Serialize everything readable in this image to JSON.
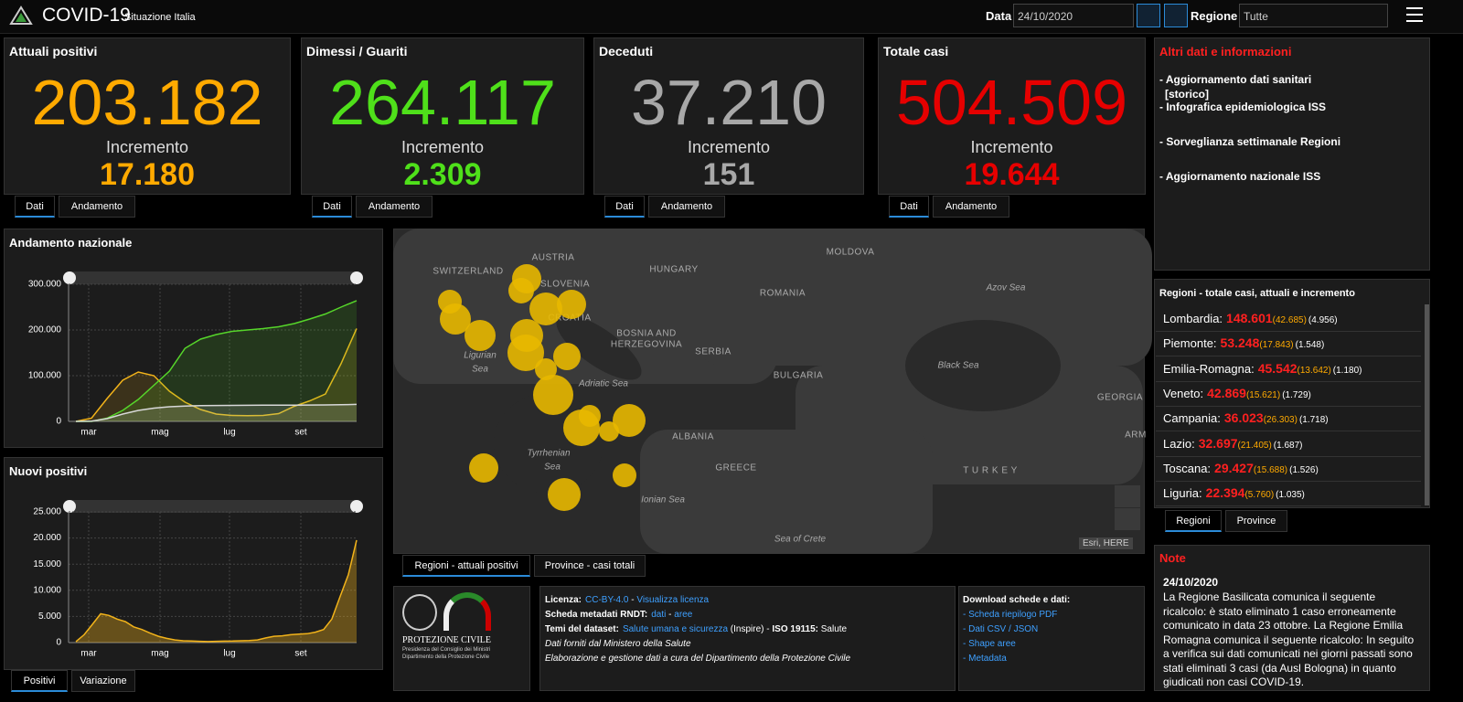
{
  "header": {
    "title": "COVID-19",
    "subtitle": "Situazione Italia",
    "date_label": "Data",
    "date": "24/10/2020",
    "region_label": "Regione",
    "region": "Tutte"
  },
  "cards": [
    {
      "title": "Attuali positivi",
      "value": "203.182",
      "increment_label": "Incremento",
      "increment": "17.180",
      "color": "#ffaa00",
      "tabs": [
        "Dati",
        "Andamento"
      ]
    },
    {
      "title": "Dimessi / Guariti",
      "value": "264.117",
      "increment_label": "Incremento",
      "increment": "2.309",
      "color": "#4fe01a",
      "tabs": [
        "Dati",
        "Andamento"
      ]
    },
    {
      "title": "Deceduti",
      "value": "37.210",
      "increment_label": "Incremento",
      "increment": "151",
      "color": "#a8a8a8",
      "tabs": [
        "Dati",
        "Andamento"
      ]
    },
    {
      "title": "Totale casi",
      "value": "504.509",
      "increment_label": "Incremento",
      "increment": "19.644",
      "color": "#e60000",
      "tabs": [
        "Dati",
        "Andamento"
      ]
    }
  ],
  "info": {
    "title": "Altri dati e informazioni",
    "links": [
      {
        "text": "- Aggiornamento dati sanitari",
        "sub": "[storico]"
      },
      {
        "text": "- Infografica epidemiologica ISS"
      },
      {
        "text": "- Sorveglianza settimanale Regioni"
      },
      {
        "text": "- Aggiornamento nazionale ISS"
      }
    ]
  },
  "national_chart": {
    "type": "line",
    "title": "Andamento nazionale",
    "x_labels": [
      "mar",
      "mag",
      "lug",
      "set"
    ],
    "ylim": [
      0,
      300000
    ],
    "yticks": [
      0,
      {
        "value": 100000,
        "label": "100.000"
      },
      {
        "value": 200000,
        "label": "200.000"
      },
      {
        "value": 300000,
        "label": "300.000"
      }
    ],
    "series": [
      {
        "color": "#f2b31a",
        "values": [
          0,
          7000,
          50000,
          90000,
          108000,
          100000,
          66000,
          42000,
          26000,
          16000,
          13000,
          12500,
          13000,
          17000,
          33000,
          45000,
          60000,
          126000,
          203182
        ]
      },
      {
        "color": "#56d62a",
        "values": [
          0,
          0,
          7000,
          24000,
          48000,
          79000,
          110000,
          160000,
          180000,
          190000,
          197000,
          200000,
          203000,
          207000,
          214000,
          224000,
          235000,
          250000,
          264117
        ]
      },
      {
        "color": "#d8d8d8",
        "values": [
          0,
          500,
          6000,
          16000,
          24000,
          29000,
          32000,
          33500,
          34400,
          34700,
          35000,
          35100,
          35400,
          35500,
          35500,
          35700,
          36000,
          36500,
          37210
        ]
      }
    ]
  },
  "new_chart": {
    "type": "area",
    "title": "Nuovi positivi",
    "x_labels": [
      "mar",
      "mag",
      "lug",
      "set"
    ],
    "ylim": [
      0,
      25000
    ],
    "yticks": [
      0,
      {
        "value": 5000,
        "label": "5.000"
      },
      {
        "value": 10000,
        "label": "10.000"
      },
      {
        "value": 15000,
        "label": "15.000"
      },
      {
        "value": 20000,
        "label": "20.000"
      },
      {
        "value": 25000,
        "label": "25.000"
      }
    ],
    "series": [
      {
        "color": "#f2b31a",
        "values": [
          200,
          1500,
          3500,
          5500,
          5200,
          4500,
          4000,
          3000,
          2500,
          1800,
          1200,
          800,
          500,
          350,
          300,
          250,
          200,
          250,
          280,
          300,
          350,
          400,
          500,
          900,
          1200,
          1300,
          1500,
          1600,
          1700,
          2000,
          2500,
          4500,
          8800,
          13000,
          19600
        ]
      }
    ],
    "tabs": [
      "Positivi",
      "Variazione"
    ]
  },
  "map": {
    "labels": [
      "AUSTRIA",
      "SWITZERLAND",
      "HUNGARY",
      "SLOVENIA",
      "MOLDOVA",
      "ROMANIA",
      "CROATIA",
      "BOSNIA AND",
      "HERZEGOVINA",
      "SERBIA",
      "Ligurian",
      "Sea",
      "Adriatic Sea",
      "BULGARIA",
      "Black Sea",
      "Azov Sea",
      "GEORGIA",
      "ALBANIA",
      "Tyrrhenian",
      "Sea",
      "GREECE",
      "T U R K E Y",
      "Ionian Sea",
      "Sea of Crete",
      "ARM"
    ],
    "tabs": [
      "Regioni - attuali positivi",
      "Province - casi totali"
    ],
    "attribution": "Esri, HERE"
  },
  "regions": {
    "title": "Regioni - totale casi, attuali e incremento",
    "rows": [
      {
        "name": "Lombardia:",
        "total": "148.601",
        "active": "(42.685)",
        "increment": "(4.956)"
      },
      {
        "name": "Piemonte:",
        "total": "53.248",
        "active": "(17.843)",
        "increment": "(1.548)"
      },
      {
        "name": "Emilia-Romagna:",
        "total": "45.542",
        "active": "(13.642)",
        "increment": "(1.180)"
      },
      {
        "name": "Veneto:",
        "total": "42.869",
        "active": "(15.621)",
        "increment": "(1.729)"
      },
      {
        "name": "Campania:",
        "total": "36.023",
        "active": "(26.303)",
        "increment": "(1.718)"
      },
      {
        "name": "Lazio:",
        "total": "32.697",
        "active": "(21.405)",
        "increment": "(1.687)"
      },
      {
        "name": "Toscana:",
        "total": "29.427",
        "active": "(15.688)",
        "increment": "(1.526)"
      },
      {
        "name": "Liguria:",
        "total": "22.394",
        "active": "(5.760)",
        "increment": "(1.035)"
      }
    ],
    "tabs": [
      "Regioni",
      "Province"
    ]
  },
  "notes": {
    "title": "Note",
    "date": "24/10/2020",
    "text": "La Regione Basilicata comunica il seguente ricalcolo: è stato eliminato 1 caso erroneamente comunicato in data 23 ottobre. La Regione Emilia Romagna comunica il seguente ricalcolo: In seguito a verifica sui dati comunicati nei giorni passati sono stati eliminati 3 casi (da Ausl Bologna) in quanto giudicati non casi COVID-19."
  },
  "footer": {
    "logo": {
      "name": "PROTEZIONE CIVILE",
      "line1": "Presidenza del Consiglio dei Ministri",
      "line2": "Dipartimento della Protezione Civile"
    },
    "license": [
      {
        "label": "Licenza:",
        "parts": [
          {
            "text": "CC-BY-4.0",
            "link": true
          },
          {
            "text": " - "
          },
          {
            "text": "Visualizza licenza",
            "link": true
          }
        ]
      },
      {
        "label": "Scheda metadati RNDT:",
        "parts": [
          {
            "text": "dati",
            "link": true
          },
          {
            "text": " - "
          },
          {
            "text": "aree",
            "link": true
          }
        ]
      },
      {
        "label": "Temi del dataset:",
        "parts": [
          {
            "text": "Salute umana e sicurezza",
            "link": true
          },
          {
            "text": " (Inspire) - "
          },
          {
            "text": "ISO 19115:",
            "bold": true
          },
          {
            "text": " Salute"
          }
        ]
      },
      {
        "label": "Dati forniti dal Ministero della Salute",
        "italic": true,
        "parts": []
      },
      {
        "label": "Elaborazione e gestione dati a cura del Dipartimento della Protezione Civile",
        "italic": true,
        "parts": []
      }
    ],
    "download": {
      "title": "Download schede e dati:",
      "links": [
        "- Scheda riepilogo PDF",
        "- Dati CSV / JSON",
        "- Shape aree",
        "- Metadata"
      ]
    }
  }
}
